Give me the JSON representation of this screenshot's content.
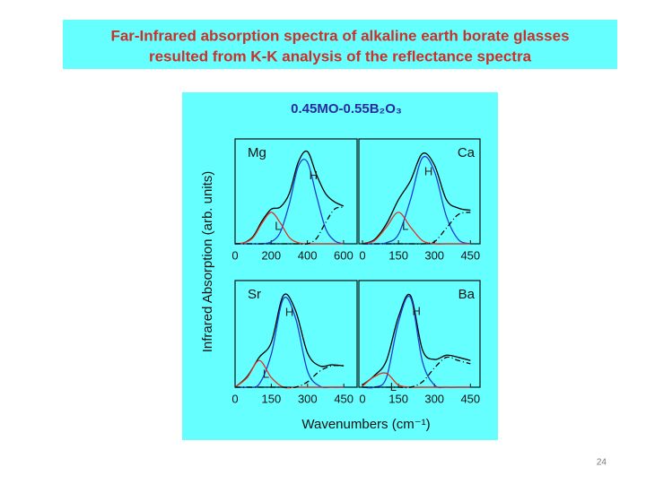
{
  "slide": {
    "title": [
      "Far-Infrared absorption spectra of alkaline earth borate glasses",
      "resulted from K-K analysis of the reflectance spectra"
    ],
    "page_number": "24"
  },
  "figure": {
    "title": "0.45MO-0.55B₂O₃",
    "y_label": "Infrared Absorption (arb. units)",
    "x_label": "Wavenumbers (cm⁻¹)"
  },
  "chart_data": [
    {
      "type": "line",
      "panel_label": "Mg",
      "label_corner": "left",
      "x": [
        0,
        50,
        100,
        150,
        200,
        250,
        300,
        350,
        400,
        450,
        500,
        550,
        600
      ],
      "xlim": [
        0,
        675
      ],
      "xticks": [
        0,
        200,
        400,
        600
      ],
      "ylim": [
        0,
        1
      ],
      "series": [
        {
          "color": "#000000",
          "values": [
            0,
            0.01,
            0.07,
            0.22,
            0.33,
            0.35,
            0.48,
            0.78,
            0.88,
            0.66,
            0.48,
            0.4,
            0.36
          ]
        },
        {
          "name": "H",
          "color": "#1f3fd0",
          "values": [
            0,
            0,
            0,
            0,
            0.02,
            0.11,
            0.38,
            0.74,
            0.78,
            0.46,
            0.15,
            0.03,
            0
          ]
        },
        {
          "name": "L",
          "color": "#e03020",
          "values": [
            0,
            0.01,
            0.06,
            0.2,
            0.3,
            0.2,
            0.06,
            0.01,
            0,
            0,
            0,
            0,
            0
          ]
        },
        {
          "color": "#000000",
          "dashed": true,
          "values": [
            0,
            0,
            0,
            0,
            0,
            0,
            0,
            0,
            0,
            0.05,
            0.2,
            0.33,
            0.35
          ]
        }
      ]
    },
    {
      "type": "line",
      "panel_label": "Ca",
      "label_corner": "right",
      "x": [
        0,
        50,
        100,
        150,
        200,
        250,
        300,
        350,
        400,
        450
      ],
      "xlim": [
        -15,
        490
      ],
      "xticks": [
        0,
        150,
        300,
        450
      ],
      "ylim": [
        0,
        1
      ],
      "series": [
        {
          "color": "#000000",
          "values": [
            0,
            0.04,
            0.19,
            0.42,
            0.6,
            0.86,
            0.75,
            0.42,
            0.34,
            0.32
          ]
        },
        {
          "name": "H",
          "color": "#1f3fd0",
          "values": [
            0,
            0,
            0.01,
            0.09,
            0.42,
            0.82,
            0.69,
            0.26,
            0.04,
            0
          ]
        },
        {
          "name": "L",
          "color": "#e03020",
          "values": [
            0,
            0.03,
            0.16,
            0.3,
            0.16,
            0.03,
            0,
            0,
            0,
            0
          ]
        },
        {
          "color": "#000000",
          "dashed": true,
          "values": [
            0,
            0,
            0,
            0,
            0,
            0,
            0.02,
            0.15,
            0.28,
            0.3
          ]
        }
      ]
    },
    {
      "type": "line",
      "panel_label": "Sr",
      "label_corner": "left",
      "x": [
        0,
        50,
        100,
        150,
        200,
        250,
        300,
        350,
        400,
        450
      ],
      "xlim": [
        0,
        505
      ],
      "xticks": [
        0,
        150,
        300,
        450
      ],
      "ylim": [
        0,
        1
      ],
      "series": [
        {
          "color": "#000000",
          "values": [
            0,
            0.1,
            0.28,
            0.42,
            0.86,
            0.72,
            0.32,
            0.2,
            0.21,
            0.2
          ]
        },
        {
          "name": "H",
          "color": "#1f3fd0",
          "values": [
            0,
            0,
            0.03,
            0.31,
            0.83,
            0.65,
            0.15,
            0.01,
            0,
            0
          ]
        },
        {
          "name": "L",
          "color": "#e03020",
          "values": [
            0,
            0.09,
            0.25,
            0.09,
            0,
            0,
            0,
            0,
            0,
            0
          ]
        },
        {
          "color": "#000000",
          "dashed": true,
          "values": [
            0,
            0,
            0,
            0,
            0,
            0,
            0.05,
            0.15,
            0.2,
            0.2
          ]
        }
      ]
    },
    {
      "type": "line",
      "panel_label": "Ba",
      "label_corner": "right",
      "x": [
        0,
        50,
        100,
        150,
        200,
        250,
        300,
        350,
        400,
        450
      ],
      "xlim": [
        -15,
        490
      ],
      "xticks": [
        0,
        150,
        300,
        450
      ],
      "ylim": [
        0,
        1
      ],
      "series": [
        {
          "color": "#000000",
          "values": [
            0.02,
            0.11,
            0.25,
            0.66,
            0.86,
            0.35,
            0.26,
            0.3,
            0.28,
            0.25
          ]
        },
        {
          "name": "H",
          "color": "#1f3fd0",
          "values": [
            0,
            0,
            0.09,
            0.61,
            0.84,
            0.24,
            0.02,
            0,
            0,
            0
          ]
        },
        {
          "name": "L",
          "color": "#e03020",
          "values": [
            0.01,
            0.1,
            0.13,
            0.02,
            0,
            0,
            0,
            0,
            0,
            0
          ]
        },
        {
          "color": "#000000",
          "dashed": true,
          "values": [
            0,
            0,
            0,
            0,
            0,
            0.05,
            0.18,
            0.28,
            0.25,
            0.22
          ]
        }
      ]
    }
  ]
}
